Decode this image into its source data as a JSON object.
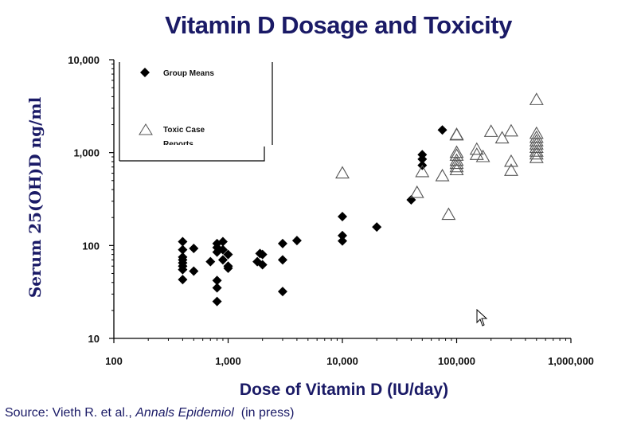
{
  "chart_data": {
    "type": "scatter",
    "title": "Vitamin D Dosage and Toxicity",
    "xlabel": "Dose of Vitamin D (IU/day)",
    "ylabel": "Serum 25(OH)D ng/ml",
    "xscale": "log",
    "yscale": "log",
    "xlim": [
      100,
      1000000
    ],
    "ylim": [
      10,
      10000
    ],
    "x_ticks": [
      "100",
      "1,000",
      "10,000",
      "100,000",
      "1,000,000"
    ],
    "y_ticks": [
      "10",
      "100",
      "1,000",
      "10,000"
    ],
    "legend_position": "top-left",
    "series": [
      {
        "name": "Group Means",
        "marker": "filled-diamond",
        "color": "#000000",
        "points": [
          [
            400,
            110
          ],
          [
            400,
            90
          ],
          [
            400,
            75
          ],
          [
            400,
            70
          ],
          [
            400,
            65
          ],
          [
            400,
            60
          ],
          [
            400,
            55
          ],
          [
            400,
            43
          ],
          [
            500,
            93
          ],
          [
            500,
            53
          ],
          [
            700,
            67
          ],
          [
            800,
            105
          ],
          [
            800,
            95
          ],
          [
            800,
            85
          ],
          [
            800,
            42
          ],
          [
            800,
            35
          ],
          [
            800,
            25
          ],
          [
            900,
            110
          ],
          [
            900,
            70
          ],
          [
            900,
            90
          ],
          [
            1000,
            80
          ],
          [
            1000,
            60
          ],
          [
            1000,
            57
          ],
          [
            1800,
            67
          ],
          [
            1900,
            82
          ],
          [
            2000,
            80
          ],
          [
            2000,
            62
          ],
          [
            3000,
            105
          ],
          [
            3000,
            70
          ],
          [
            3000,
            32
          ],
          [
            4000,
            113
          ],
          [
            10000,
            205
          ],
          [
            10000,
            128
          ],
          [
            10000,
            112
          ],
          [
            20000,
            158
          ],
          [
            40000,
            310
          ],
          [
            50000,
            950
          ],
          [
            50000,
            850
          ],
          [
            50000,
            730
          ],
          [
            75000,
            1750
          ]
        ]
      },
      {
        "name": "Toxic Case Reports",
        "marker": "open-triangle",
        "color": "#000000",
        "points": [
          [
            10000,
            600
          ],
          [
            45000,
            370
          ],
          [
            50000,
            620
          ],
          [
            75000,
            560
          ],
          [
            85000,
            215
          ],
          [
            100000,
            1560
          ],
          [
            100000,
            1540
          ],
          [
            100000,
            1000
          ],
          [
            100000,
            930
          ],
          [
            100000,
            820
          ],
          [
            100000,
            760
          ],
          [
            100000,
            700
          ],
          [
            100000,
            650
          ],
          [
            150000,
            1080
          ],
          [
            150000,
            950
          ],
          [
            170000,
            900
          ],
          [
            200000,
            1680
          ],
          [
            250000,
            1430
          ],
          [
            300000,
            1700
          ],
          [
            300000,
            800
          ],
          [
            300000,
            640
          ],
          [
            500000,
            3700
          ],
          [
            500000,
            1600
          ],
          [
            500000,
            1450
          ],
          [
            500000,
            1330
          ],
          [
            500000,
            1230
          ],
          [
            500000,
            1130
          ],
          [
            500000,
            1030
          ],
          [
            500000,
            960
          ],
          [
            500000,
            880
          ]
        ]
      }
    ]
  },
  "legend": {
    "group_means": "Group Means",
    "toxic_case": "Toxic Case",
    "toxic_case_2": "Reports"
  },
  "source": {
    "prefix": "Source: Vieth R. et al., ",
    "journal": "Annals Epidemiol",
    "suffix": "  (in press)"
  },
  "cursor_icon": "mouse-pointer-icon"
}
